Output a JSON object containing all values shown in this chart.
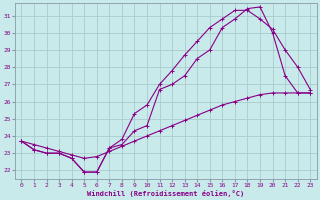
{
  "xlabel": "Windchill (Refroidissement éolien,°C)",
  "ylabel": "",
  "bg_color": "#c8eaea",
  "line_color": "#880088",
  "grid_color": "#aacccc",
  "spine_color": "#8899aa",
  "xlim": [
    -0.5,
    23.5
  ],
  "ylim": [
    21.5,
    31.7
  ],
  "xticks": [
    0,
    1,
    2,
    3,
    4,
    5,
    6,
    7,
    8,
    9,
    10,
    11,
    12,
    13,
    14,
    15,
    16,
    17,
    18,
    19,
    20,
    21,
    22,
    23
  ],
  "yticks": [
    22,
    23,
    24,
    25,
    26,
    27,
    28,
    29,
    30,
    31
  ],
  "line1_x": [
    0,
    1,
    2,
    3,
    4,
    5,
    6,
    7,
    8,
    9,
    10,
    11,
    12,
    13,
    14,
    15,
    16,
    17,
    18,
    19,
    20,
    21,
    22,
    23
  ],
  "line1_y": [
    23.7,
    23.2,
    23.0,
    23.0,
    22.7,
    21.9,
    21.9,
    23.3,
    23.5,
    24.3,
    24.6,
    26.7,
    27.0,
    27.5,
    28.5,
    29.0,
    30.3,
    30.8,
    31.4,
    31.5,
    30.0,
    27.5,
    26.5,
    26.5
  ],
  "line2_x": [
    0,
    1,
    2,
    3,
    4,
    5,
    6,
    7,
    8,
    9,
    10,
    11,
    12,
    13,
    14,
    15,
    16,
    17,
    18,
    19,
    20,
    21,
    22,
    23
  ],
  "line2_y": [
    23.7,
    23.2,
    23.0,
    23.0,
    22.7,
    21.9,
    21.9,
    23.3,
    23.8,
    25.3,
    25.8,
    27.0,
    27.8,
    28.7,
    29.5,
    30.3,
    30.8,
    31.3,
    31.3,
    30.8,
    30.2,
    29.0,
    28.0,
    26.7
  ],
  "line3_x": [
    0,
    1,
    2,
    3,
    4,
    5,
    6,
    7,
    8,
    9,
    10,
    11,
    12,
    13,
    14,
    15,
    16,
    17,
    18,
    19,
    20,
    21,
    22,
    23
  ],
  "line3_y": [
    23.7,
    23.5,
    23.3,
    23.1,
    22.9,
    22.7,
    22.8,
    23.1,
    23.4,
    23.7,
    24.0,
    24.3,
    24.6,
    24.9,
    25.2,
    25.5,
    25.8,
    26.0,
    26.2,
    26.4,
    26.5,
    26.5,
    26.5,
    26.5
  ]
}
